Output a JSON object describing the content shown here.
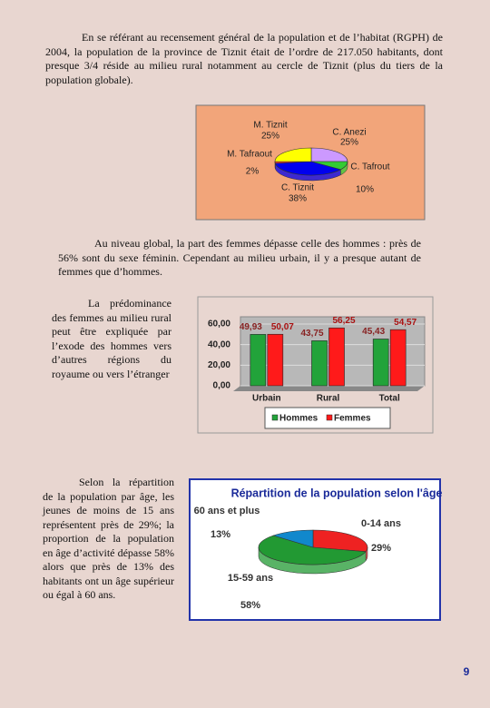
{
  "paragraphs": [
    "En se référant au recensement général de la population et de l’habitat (RGPH) de 2004, la population de la province de Tiznit était de l’ordre de 217.050 habitants, dont presque 3/4 réside au milieu rural notamment au cercle de Tiznit (plus du tiers de la population globale).",
    "Au niveau global, la part des femmes dépasse celle des hommes : près de 56% sont du sexe féminin. Cependant au milieu urbain, il y a presque autant de femmes que d’hommes.",
    "La prédominance des femmes au milieu rural peut être expliquée par l’exode des hommes vers d’autres régions du royaume ou vers l’étranger",
    "Selon la répartition de la population par âge, les jeunes de moins de 15 ans représentent près de 29%; la proportion de la population en âge d’activité dépasse 58% alors que près de 13% des habitants ont un âge supérieur ou égal à 60 ans."
  ],
  "chart_data": [
    {
      "type": "pie",
      "categories": [
        "C. Anezi",
        "C. Tafrout",
        "C. Tiznit",
        "M. Tafraout",
        "M. Tiznit"
      ],
      "values": [
        25,
        10,
        38,
        2,
        25
      ],
      "value_labels": [
        "25%",
        "10%",
        "38%",
        "2%",
        "25%"
      ],
      "colors": [
        "#cc99ff",
        "#33cc33",
        "#0000ee",
        "#ff3333",
        "#ffff00"
      ]
    },
    {
      "type": "bar",
      "categories": [
        "Urbain",
        "Rural",
        "Total"
      ],
      "series": [
        {
          "name": "Hommes",
          "color": "#22a33a",
          "values": [
            49.93,
            43.75,
            45.43
          ],
          "value_labels": [
            "49,93",
            "43,75",
            "45,43"
          ]
        },
        {
          "name": "Femmes",
          "color": "#ff1a1a",
          "values": [
            50.07,
            56.25,
            54.57
          ],
          "value_labels": [
            "50,07",
            "56,25",
            "54,57"
          ]
        }
      ],
      "ylim": [
        0,
        60
      ],
      "yticks": [
        {
          "value": 0,
          "label": "0,00"
        },
        {
          "value": 20,
          "label": "20,00"
        },
        {
          "value": 40,
          "label": "40,00"
        },
        {
          "value": 60,
          "label": "60,00"
        }
      ],
      "grid": true
    },
    {
      "type": "pie",
      "title": "Répartition de la population selon l'âge",
      "categories": [
        "0-14 ans",
        "15-59 ans",
        "60 ans et plus"
      ],
      "values": [
        29,
        58,
        13
      ],
      "value_labels": [
        "29%",
        "58%",
        "13%"
      ],
      "colors": [
        "#ee2222",
        "#229933",
        "#1188cc"
      ]
    }
  ],
  "page_number": "9"
}
